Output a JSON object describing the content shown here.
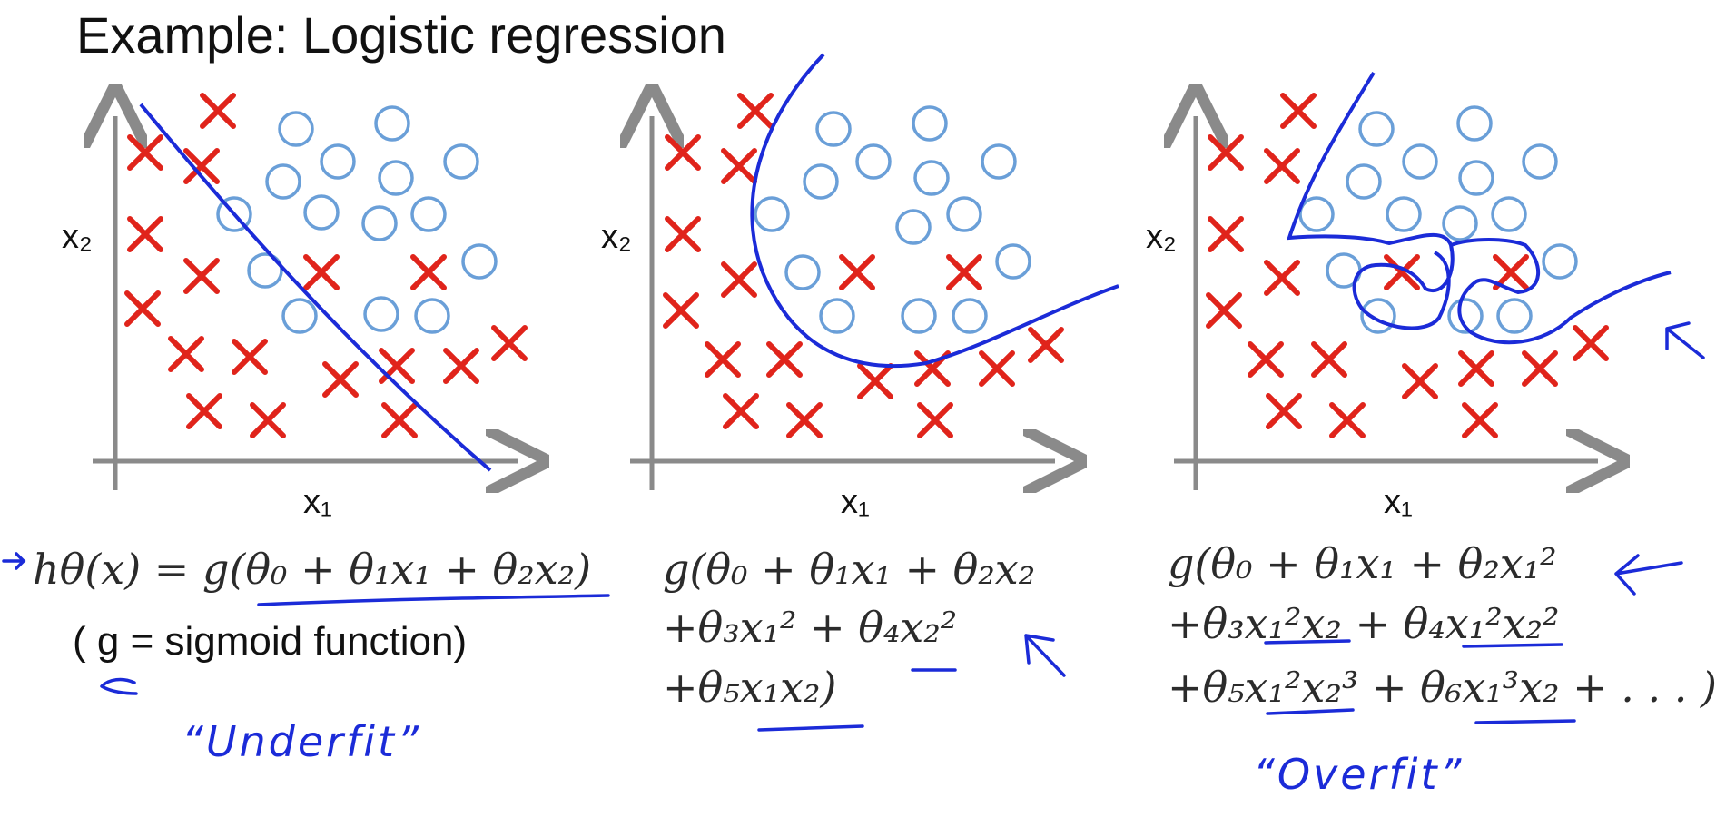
{
  "title": "Example: Logistic regression",
  "axis_labels": {
    "x": "x₁",
    "y": "x₂"
  },
  "panels": [
    {
      "hypothesis_lines": [
        "hθ(x) = g(θ₀ + θ₁x₁ + θ₂x₂)"
      ],
      "note": "( g = sigmoid function)",
      "annotation": "“Underfit”"
    },
    {
      "hypothesis_lines": [
        "g(θ₀ + θ₁x₁ + θ₂x₂",
        "+θ₃x₁² + θ₄x₂²",
        "+θ₅x₁x₂)"
      ],
      "note": "",
      "annotation": ""
    },
    {
      "hypothesis_lines": [
        "g(θ₀ + θ₁x₁ + θ₂x₁²",
        "+θ₃x₁²x₂ + θ₄x₁²x₂²",
        "+θ₅x₁²x₂³ + θ₆x₁³x₂ + . . . )"
      ],
      "note": "",
      "annotation": "“Overfit”"
    }
  ],
  "colors": {
    "cross": "#e0241b",
    "circle": "#6a9fd8",
    "boundary": "#1b2bd8",
    "axis": "#8a8a8a"
  }
}
